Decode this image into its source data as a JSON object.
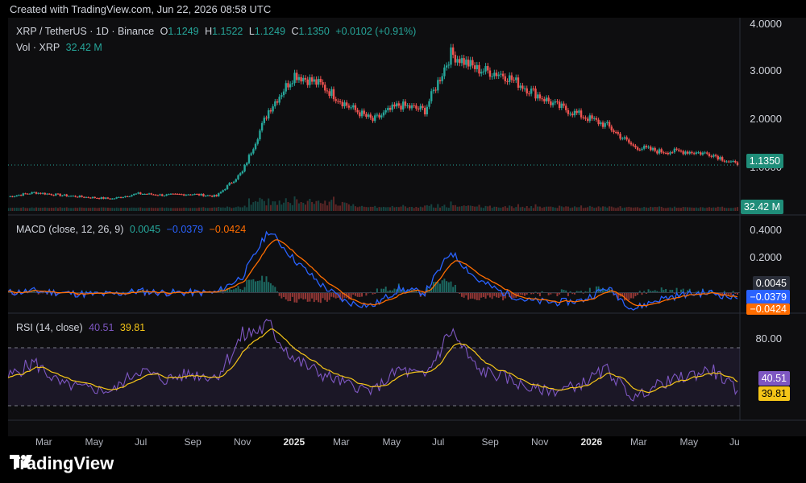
{
  "banner": "Created with TradingView.com, Jun 22, 2026 08:58 UTC",
  "brand": "TradingView",
  "header": {
    "symbol": "XRP / TetherUS · 1D · Binance",
    "o_label": "O",
    "o": "1.1249",
    "h_label": "H",
    "h": "1.1522",
    "l_label": "L",
    "l": "1.1249",
    "c_label": "C",
    "c": "1.1350",
    "change": "+0.0102 (+0.91%)",
    "vol_label": "Vol · XRP",
    "vol": "32.42 M"
  },
  "macd_header": {
    "label": "MACD (close, 12, 26, 9)",
    "hist": "0.0045",
    "macd": "−0.0379",
    "signal": "−0.0424"
  },
  "rsi_header": {
    "label": "RSI (14, close)",
    "rsi": "40.51",
    "rsi_ma": "39.81"
  },
  "price_axis": [
    "4.0000",
    "3.0000",
    "2.0000",
    "1.0000"
  ],
  "macd_axis": [
    "0.4000",
    "0.2000"
  ],
  "rsi_axis": [
    "80.00"
  ],
  "last_price": "1.1350",
  "last_volume": "32.42 M",
  "macd_pills": {
    "hist": "0.0045",
    "macd": "−0.0379",
    "signal": "−0.0424"
  },
  "rsi_pills": {
    "rsi": "40.51",
    "rsi_ma": "39.81"
  },
  "x_axis": [
    {
      "label": "Mar",
      "bold": false
    },
    {
      "label": "May",
      "bold": false
    },
    {
      "label": "Jul",
      "bold": false
    },
    {
      "label": "Sep",
      "bold": false
    },
    {
      "label": "Nov",
      "bold": false
    },
    {
      "label": "2025",
      "bold": true
    },
    {
      "label": "Mar",
      "bold": false
    },
    {
      "label": "May",
      "bold": false
    },
    {
      "label": "Jul",
      "bold": false
    },
    {
      "label": "Sep",
      "bold": false
    },
    {
      "label": "Nov",
      "bold": false
    },
    {
      "label": "2026",
      "bold": true
    },
    {
      "label": "Mar",
      "bold": false
    },
    {
      "label": "May",
      "bold": false
    },
    {
      "label": "Ju",
      "bold": false
    }
  ],
  "colors": {
    "up": "#26a69a",
    "down": "#ef5350",
    "macd": "#2962ff",
    "signal": "#ff6d00",
    "rsi": "#7e57c2",
    "rsi_ma": "#f5c518",
    "hist_up": "#26a69a",
    "hist_down": "#ef5350"
  },
  "chart_data": {
    "type": "line",
    "title": "XRP / TetherUS · 1D · Binance",
    "x": [
      "Feb 2024",
      "Mar 2024",
      "Apr 2024",
      "May 2024",
      "Jun 2024",
      "Jul 2024",
      "Aug 2024",
      "Sep 2024",
      "Oct 2024",
      "Nov 2024",
      "Dec 2024",
      "Jan 2025",
      "Feb 2025",
      "Mar 2025",
      "Apr 2025",
      "May 2025",
      "Jun 2025",
      "Jul 2025",
      "Aug 2025",
      "Sep 2025",
      "Oct 2025",
      "Nov 2025",
      "Dec 2025",
      "Jan 2026",
      "Feb 2026",
      "Mar 2026",
      "Apr 2026",
      "May 2026",
      "Jun 2026"
    ],
    "series": [
      {
        "values": [
          0.52,
          0.6,
          0.55,
          0.51,
          0.48,
          0.58,
          0.55,
          0.57,
          0.53,
          1.0,
          2.2,
          2.9,
          2.7,
          2.3,
          2.0,
          2.3,
          2.2,
          3.3,
          3.0,
          2.9,
          2.6,
          2.3,
          2.1,
          1.9,
          1.5,
          1.4,
          1.4,
          1.35,
          1.135
        ]
      },
      {
        "name": "MACD",
        "values": [
          0.0,
          0.01,
          0.0,
          -0.01,
          -0.01,
          0.01,
          0.0,
          0.0,
          0.0,
          0.1,
          0.38,
          0.2,
          0.05,
          -0.06,
          -0.08,
          0.02,
          0.0,
          0.25,
          0.08,
          0.0,
          -0.05,
          -0.06,
          -0.05,
          0.03,
          -0.1,
          -0.04,
          -0.01,
          0.0,
          -0.0379
        ]
      },
      {
        "name": "RSI",
        "values": [
          50,
          60,
          45,
          42,
          40,
          55,
          48,
          52,
          50,
          78,
          85,
          62,
          52,
          45,
          40,
          55,
          50,
          82,
          55,
          50,
          42,
          40,
          45,
          55,
          35,
          45,
          50,
          55,
          40.51
        ]
      }
    ],
    "price_ylim": [
      0.4,
      4.0
    ],
    "macd_ylim": [
      -0.15,
      0.45
    ],
    "rsi_ylim": [
      20,
      90
    ],
    "rsi_bands": [
      70,
      30
    ],
    "grid": false,
    "last_price": 1.135
  }
}
